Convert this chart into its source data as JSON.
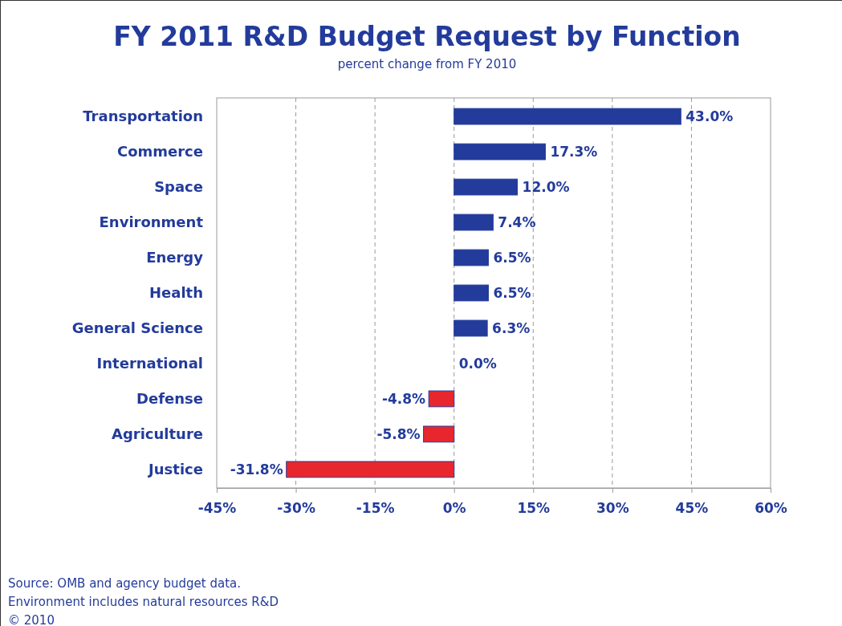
{
  "chart_data": {
    "type": "bar",
    "orientation": "horizontal",
    "title": "FY 2011 R&D Budget Request by Function",
    "subtitle": "percent change from FY 2010",
    "categories": [
      "Transportation",
      "Commerce",
      "Space",
      "Environment",
      "Energy ",
      "Health",
      "General Science",
      "International",
      "Defense",
      "Agriculture",
      "Justice"
    ],
    "values": [
      43.0,
      17.3,
      12.0,
      7.4,
      6.5,
      6.5,
      6.3,
      0.0,
      -4.8,
      -5.8,
      -31.8
    ],
    "colors": [
      "#233b9b",
      "#233b9b",
      "#233b9b",
      "#233b9b",
      "#233b9b",
      "#233b9b",
      "#233b9b",
      "#233b9b",
      "#e8262e",
      "#e8262e",
      "#e8262e"
    ],
    "value_labels": [
      "43.0%",
      "17.3%",
      "12.0%",
      "7.4%",
      "6.5%",
      "6.5%",
      "6.3%",
      "0.0%",
      "-4.8%",
      "-5.8%",
      "-31.8%"
    ],
    "xlim": [
      -45,
      60
    ],
    "xticks": [
      {
        "value": -45,
        "label": "-45%"
      },
      {
        "value": -30,
        "label": "-30%"
      },
      {
        "value": -15,
        "label": "-15%"
      },
      {
        "value": 0,
        "label": "0%"
      },
      {
        "value": 15,
        "label": "15%"
      },
      {
        "value": 30,
        "label": "30%"
      },
      {
        "value": 45,
        "label": "45%"
      },
      {
        "value": 60,
        "label": "60%"
      }
    ],
    "grid": "x",
    "annotations": [
      "Source: OMB and agency budget data.",
      "Environment includes natural resources R&D",
      "© 2010"
    ]
  }
}
